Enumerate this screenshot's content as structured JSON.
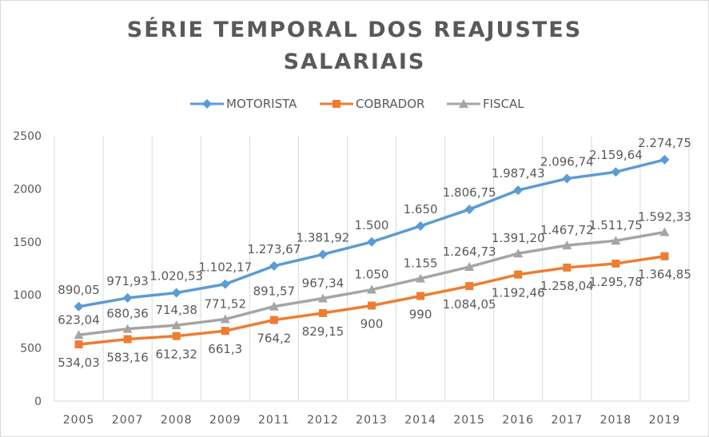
{
  "chart_data": {
    "type": "line",
    "title": "SÉRIE TEMPORAL DOS REAJUSTES SALARIAIS",
    "title_lines": [
      "SÉRIE TEMPORAL DOS REAJUSTES",
      "SALARIAIS"
    ],
    "categories": [
      "2005",
      "2007",
      "2008",
      "2009",
      "2011",
      "2012",
      "2013",
      "2014",
      "2015",
      "2016",
      "2017",
      "2018",
      "2019"
    ],
    "ylim": [
      0,
      2500
    ],
    "yticks": [
      "0",
      "500",
      "1000",
      "1500",
      "2000",
      "2500"
    ],
    "grid": "vertical",
    "legend": "top-center",
    "series": [
      {
        "name": "MOTORISTA",
        "color": "#5b9bd5",
        "marker": "diamond",
        "values": [
          890.05,
          971.93,
          1020.53,
          1102.17,
          1273.67,
          1381.92,
          1500,
          1650,
          1806.75,
          1987.43,
          2096.74,
          2159.64,
          2274.75
        ],
        "labels": [
          "890,05",
          "971,93",
          "1.020,53",
          "1.102,17",
          "1.273,67",
          "1.381,92",
          "1.500",
          "1.650",
          "1.806,75",
          "1.987,43",
          "2.096,74",
          "2.159,64",
          "2.274,75"
        ]
      },
      {
        "name": "COBRADOR",
        "color": "#ed7d31",
        "marker": "square",
        "values": [
          534.03,
          583.16,
          612.32,
          661.3,
          764.2,
          829.15,
          900,
          990,
          1084.05,
          1192.46,
          1258.04,
          1295.78,
          1364.85
        ],
        "labels": [
          "534,03",
          "583,16",
          "612,32",
          "661,3",
          "764,2",
          "829,15",
          "900",
          "990",
          "1.084,05",
          "1.192,46",
          "1.258,04",
          "1.295,78",
          "1.364,85"
        ]
      },
      {
        "name": "FISCAL",
        "color": "#a5a5a5",
        "marker": "triangle",
        "values": [
          623.04,
          680.36,
          714.38,
          771.52,
          891.57,
          967.34,
          1050,
          1155,
          1264.73,
          1391.2,
          1467.72,
          1511.75,
          1592.33
        ],
        "labels": [
          "623,04",
          "680,36",
          "714,38",
          "771,52",
          "891,57",
          "967,34",
          "1.050",
          "1.155",
          "1.264,73",
          "1.391,20",
          "1.467,72",
          "1.511,75",
          "1.592,33"
        ]
      }
    ]
  }
}
